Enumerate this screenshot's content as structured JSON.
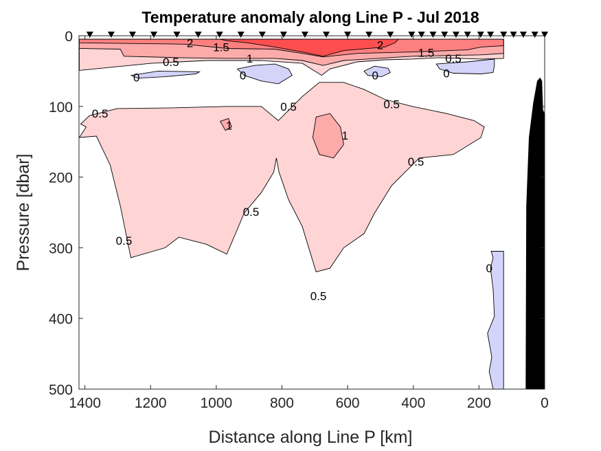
{
  "chart_data": {
    "type": "contour",
    "title": "Temperature anomaly along Line P - Jul 2018",
    "xlabel": "Distance along Line P [km]",
    "ylabel": "Pressure [dbar]",
    "xlim": [
      1418,
      0
    ],
    "ylim": [
      0,
      500
    ],
    "x_reversed": true,
    "y_reversed": true,
    "xticks": [
      1400,
      1200,
      1000,
      800,
      600,
      400,
      200,
      0
    ],
    "yticks": [
      0,
      100,
      200,
      300,
      400,
      500
    ],
    "grid": false,
    "colors": {
      "below_0": "#d4d4fa",
      "0_to_0.5": "#ffffff",
      "0.5_to_1": "#fed4d4",
      "1_to_1.5": "#fdaaaa",
      "1.5_to_2": "#fd8080",
      "above_2": "#fd4f4f",
      "bathymetry": "#000000",
      "stations": "#000000"
    },
    "station_km": [
      1385,
      1320,
      1255,
      1190,
      1120,
      1055,
      990,
      925,
      860,
      795,
      730,
      665,
      600,
      535,
      470,
      405,
      375,
      340,
      305,
      270,
      235,
      195,
      165,
      125,
      95,
      65,
      30,
      0
    ],
    "filled_regions": [
      {
        "level": 0.5,
        "points": [
          [
            1417,
            5
          ],
          [
            125,
            5
          ],
          [
            125,
            32
          ],
          [
            194,
            33
          ],
          [
            320,
            31
          ],
          [
            403,
            33
          ],
          [
            487,
            34
          ],
          [
            571,
            37
          ],
          [
            654,
            47
          ],
          [
            679,
            56
          ],
          [
            738,
            39
          ],
          [
            863,
            35
          ],
          [
            1030,
            35
          ],
          [
            1198,
            39
          ],
          [
            1417,
            49
          ]
        ]
      },
      {
        "level": 0.5,
        "points": [
          [
            686,
            66
          ],
          [
            738,
            86
          ],
          [
            811,
            120
          ],
          [
            863,
            100
          ],
          [
            968,
            100
          ],
          [
            1135,
            102
          ],
          [
            1302,
            103
          ],
          [
            1386,
            113
          ],
          [
            1413,
            125
          ],
          [
            1396,
            129
          ],
          [
            1417,
            144
          ],
          [
            1365,
            142
          ],
          [
            1323,
            183
          ],
          [
            1292,
            241
          ],
          [
            1260,
            314
          ],
          [
            1156,
            300
          ],
          [
            1114,
            285
          ],
          [
            1030,
            295
          ],
          [
            968,
            309
          ],
          [
            915,
            251
          ],
          [
            863,
            222
          ],
          [
            825,
            193
          ],
          [
            817,
            173
          ],
          [
            809,
            193
          ],
          [
            780,
            232
          ],
          [
            738,
            270
          ],
          [
            696,
            334
          ],
          [
            654,
            329
          ],
          [
            612,
            300
          ],
          [
            550,
            280
          ],
          [
            518,
            251
          ],
          [
            466,
            212
          ],
          [
            382,
            173
          ],
          [
            278,
            168
          ],
          [
            194,
            144
          ],
          [
            184,
            129
          ],
          [
            215,
            120
          ],
          [
            299,
            110
          ],
          [
            403,
            100
          ],
          [
            487,
            90
          ],
          [
            550,
            76
          ],
          [
            612,
            66
          ]
        ]
      },
      {
        "level": 1,
        "points": [
          [
            1417,
            5
          ],
          [
            125,
            5
          ],
          [
            125,
            25
          ],
          [
            194,
            27
          ],
          [
            403,
            29
          ],
          [
            612,
            35
          ],
          [
            675,
            42
          ],
          [
            738,
            35
          ],
          [
            821,
            32
          ],
          [
            968,
            32
          ],
          [
            1114,
            31
          ],
          [
            1281,
            29
          ],
          [
            1292,
            19
          ],
          [
            1417,
            18
          ]
        ]
      },
      {
        "level": 1,
        "points": [
          [
            696,
            115
          ],
          [
            654,
            110
          ],
          [
            622,
            129
          ],
          [
            612,
            154
          ],
          [
            643,
            173
          ],
          [
            686,
            168
          ],
          [
            706,
            144
          ]
        ]
      },
      {
        "level": 1,
        "points": [
          [
            988,
            121
          ],
          [
            963,
            117
          ],
          [
            953,
            129
          ],
          [
            972,
            134
          ]
        ]
      },
      {
        "level": 1.5,
        "points": [
          [
            1417,
            5
          ],
          [
            125,
            5
          ],
          [
            125,
            14
          ],
          [
            194,
            16
          ],
          [
            236,
            20
          ],
          [
            403,
            23
          ],
          [
            571,
            25
          ],
          [
            675,
            30
          ],
          [
            738,
            25
          ],
          [
            821,
            19
          ],
          [
            968,
            18
          ],
          [
            1093,
            12
          ],
          [
            1417,
            10
          ]
        ]
      },
      {
        "level": 2,
        "points": [
          [
            989,
            5
          ],
          [
            445,
            5
          ],
          [
            456,
            10
          ],
          [
            487,
            16
          ],
          [
            612,
            21
          ],
          [
            675,
            29
          ],
          [
            738,
            23
          ],
          [
            821,
            16
          ],
          [
            905,
            10
          ],
          [
            968,
            7
          ]
        ]
      },
      {
        "level": 0,
        "points": [
          [
            1259,
            56
          ],
          [
            1177,
            50
          ],
          [
            1051,
            51
          ],
          [
            1062,
            54
          ],
          [
            1156,
            58
          ],
          [
            1239,
            60
          ]
        ]
      },
      {
        "level": 0,
        "points": [
          [
            936,
            47
          ],
          [
            884,
            42
          ],
          [
            821,
            40
          ],
          [
            780,
            47
          ],
          [
            769,
            56
          ],
          [
            811,
            68
          ],
          [
            863,
            64
          ],
          [
            915,
            56
          ]
        ]
      },
      {
        "level": 0,
        "points": [
          [
            550,
            50
          ],
          [
            518,
            43
          ],
          [
            477,
            46
          ],
          [
            470,
            52
          ],
          [
            497,
            58
          ],
          [
            539,
            56
          ]
        ]
      },
      {
        "level": 0,
        "points": [
          [
            330,
            40
          ],
          [
            236,
            37
          ],
          [
            153,
            33
          ],
          [
            153,
            42
          ],
          [
            157,
            52
          ],
          [
            194,
            54
          ],
          [
            278,
            53
          ],
          [
            320,
            47
          ]
        ]
      },
      {
        "level": 0,
        "points": [
          [
            163,
            305
          ],
          [
            125,
            305
          ],
          [
            125,
            500
          ],
          [
            157,
            500
          ],
          [
            169,
            475
          ],
          [
            161,
            455
          ],
          [
            174,
            421
          ],
          [
            153,
            397
          ],
          [
            157,
            358
          ],
          [
            165,
            329
          ],
          [
            157,
            314
          ]
        ]
      }
    ],
    "bathymetry": [
      [
        58,
        500
      ],
      [
        56,
        241
      ],
      [
        48,
        144
      ],
      [
        35,
        95
      ],
      [
        23,
        64
      ],
      [
        14,
        59
      ],
      [
        8,
        64
      ],
      [
        5,
        105
      ],
      [
        0,
        110
      ],
      [
        0,
        500
      ]
    ],
    "contour_labels": [
      {
        "text": "2",
        "x": 1080,
        "y": 10
      },
      {
        "text": "1.5",
        "x": 985,
        "y": 16
      },
      {
        "text": "0.5",
        "x": 1138,
        "y": 37
      },
      {
        "text": "1",
        "x": 898,
        "y": 32
      },
      {
        "text": "0",
        "x": 1243,
        "y": 59
      },
      {
        "text": "0",
        "x": 919,
        "y": 56
      },
      {
        "text": "0",
        "x": 516,
        "y": 56
      },
      {
        "text": "0",
        "x": 299,
        "y": 53
      },
      {
        "text": "2",
        "x": 501,
        "y": 13
      },
      {
        "text": "1.5",
        "x": 361,
        "y": 24
      },
      {
        "text": "0.5",
        "x": 278,
        "y": 32
      },
      {
        "text": "0.5",
        "x": 1354,
        "y": 110
      },
      {
        "text": "0.5",
        "x": 780,
        "y": 100
      },
      {
        "text": "0.5",
        "x": 466,
        "y": 97
      },
      {
        "text": "1",
        "x": 961,
        "y": 127
      },
      {
        "text": "1",
        "x": 608,
        "y": 141
      },
      {
        "text": "0.5",
        "x": 392,
        "y": 178
      },
      {
        "text": "0.5",
        "x": 894,
        "y": 249
      },
      {
        "text": "0.5",
        "x": 1281,
        "y": 290
      },
      {
        "text": "0.5",
        "x": 689,
        "y": 368
      },
      {
        "text": "0",
        "x": 169,
        "y": 329
      }
    ]
  }
}
